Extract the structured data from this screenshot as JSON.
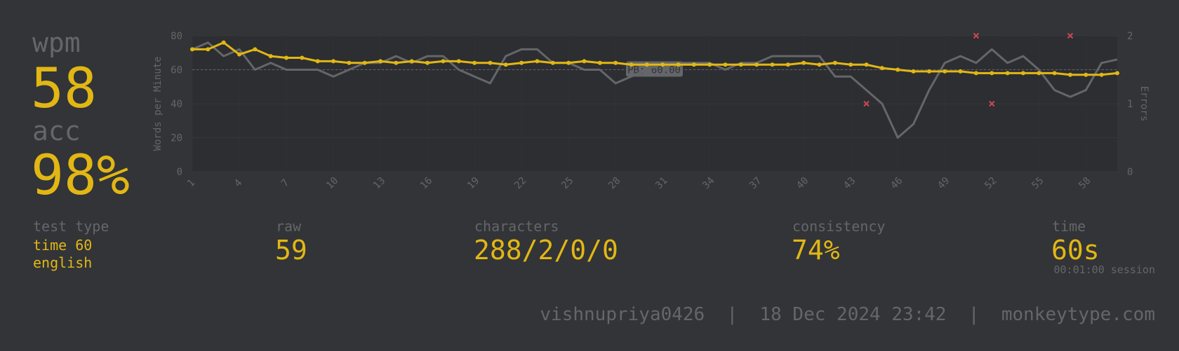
{
  "stats": {
    "wpm_label": "wpm",
    "wpm": "58",
    "acc_label": "acc",
    "acc": "98%",
    "test_type_label": "test type",
    "test_type": "time 60",
    "language": "english",
    "raw_label": "raw",
    "raw": "59",
    "characters_label": "characters",
    "characters": "288/2/0/0",
    "consistency_label": "consistency",
    "consistency": "74%",
    "time_label": "time",
    "time": "60s",
    "session": "00:01:00 session"
  },
  "footer": "vishnupriya0426  |  18 Dec 2024 23:42  |  monkeytype.com",
  "chart_data": {
    "type": "line",
    "y_label": "Words per Minute",
    "y2_label": "Errors",
    "x": [
      1,
      2,
      3,
      4,
      5,
      6,
      7,
      8,
      9,
      10,
      11,
      12,
      13,
      14,
      15,
      16,
      17,
      18,
      19,
      20,
      21,
      22,
      23,
      24,
      25,
      26,
      27,
      28,
      29,
      30,
      31,
      32,
      33,
      34,
      35,
      36,
      37,
      38,
      39,
      40,
      41,
      42,
      43,
      44,
      45,
      46,
      47,
      48,
      49,
      50,
      51,
      52,
      53,
      54,
      55,
      56,
      57,
      58,
      59,
      60
    ],
    "xlim": [
      1,
      60
    ],
    "xticks": [
      1,
      4,
      7,
      10,
      13,
      16,
      19,
      22,
      25,
      28,
      31,
      34,
      37,
      40,
      43,
      46,
      49,
      52,
      55,
      58
    ],
    "ylim": [
      0,
      80
    ],
    "yticks": [
      0,
      20,
      40,
      60,
      80
    ],
    "y2lim": [
      0,
      2
    ],
    "y2ticks": [
      0,
      1,
      2
    ],
    "grid": true,
    "series": [
      {
        "color": "#646669",
        "values": [
          72,
          76,
          68,
          72,
          60,
          64,
          60,
          60,
          60,
          56,
          60,
          64,
          64,
          68,
          64,
          68,
          68,
          60,
          56,
          52,
          68,
          72,
          72,
          64,
          64,
          60,
          60,
          52,
          56,
          60,
          64,
          64,
          64,
          64,
          60,
          64,
          64,
          68,
          68,
          68,
          68,
          56,
          56,
          48,
          40,
          20,
          28,
          48,
          64,
          68,
          64,
          72,
          64,
          68,
          60,
          48,
          44,
          48,
          64,
          66
        ]
      },
      {
        "color": "#e2b714",
        "markers": true,
        "values": [
          72,
          72,
          76,
          69,
          72,
          68,
          67,
          67,
          65,
          65,
          64,
          64,
          65,
          64,
          65,
          64,
          65,
          65,
          64,
          64,
          63,
          64,
          65,
          64,
          64,
          65,
          64,
          64,
          63,
          63,
          63,
          63,
          63,
          63,
          63,
          63,
          63,
          63,
          63,
          64,
          63,
          64,
          63,
          63,
          61,
          60,
          59,
          59,
          59,
          59,
          58,
          58,
          58,
          58,
          58,
          58,
          57,
          57,
          57,
          58
        ]
      },
      {
        "color": "#ca4754",
        "axis": "y2",
        "style": "cross",
        "values": [
          null,
          null,
          null,
          null,
          null,
          null,
          null,
          null,
          null,
          null,
          null,
          null,
          null,
          null,
          null,
          null,
          null,
          null,
          null,
          null,
          null,
          null,
          null,
          null,
          null,
          null,
          null,
          null,
          null,
          null,
          null,
          null,
          null,
          null,
          null,
          null,
          null,
          null,
          null,
          null,
          null,
          null,
          null,
          1,
          null,
          null,
          null,
          null,
          null,
          null,
          2,
          1,
          null,
          null,
          null,
          null,
          2,
          null,
          null,
          null
        ]
      }
    ],
    "annotations": [
      {
        "text": "PB: 60.00",
        "y": 60
      }
    ]
  }
}
